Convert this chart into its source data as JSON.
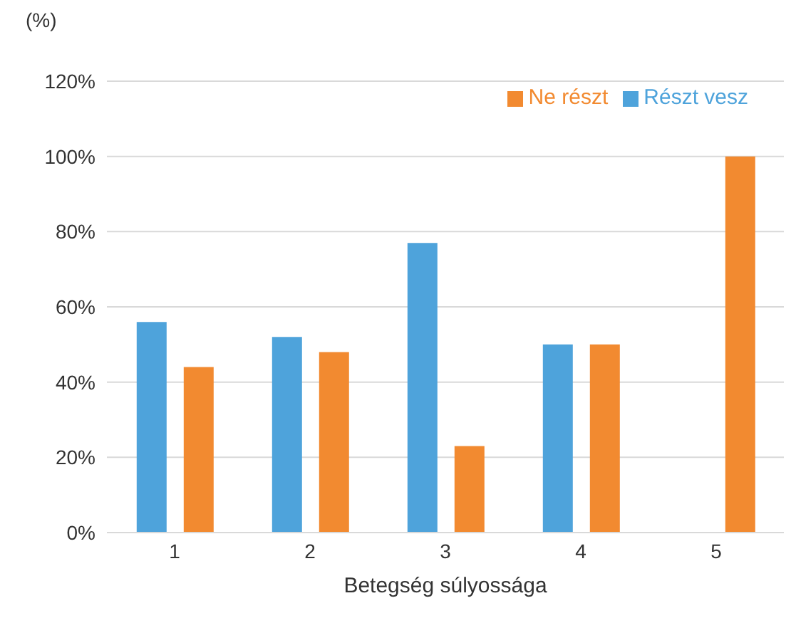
{
  "chart_data": {
    "type": "bar",
    "ylabel": "(%)",
    "xlabel": "Betegség súlyossága",
    "categories": [
      "1",
      "2",
      "3",
      "4",
      "5"
    ],
    "series": [
      {
        "name": "Részt vesz",
        "color": "#4ea3db",
        "values": [
          56,
          52,
          77,
          50,
          null
        ]
      },
      {
        "name": "Ne részt",
        "color": "#f28a30",
        "values": [
          44,
          48,
          23,
          50,
          100
        ]
      }
    ],
    "ylim": [
      0,
      120
    ],
    "yticks": [
      {
        "value": 0,
        "label": "0%"
      },
      {
        "value": 20,
        "label": "20%"
      },
      {
        "value": 40,
        "label": "40%"
      },
      {
        "value": 60,
        "label": "60%"
      },
      {
        "value": 80,
        "label": "80%"
      },
      {
        "value": 100,
        "label": "100%"
      },
      {
        "value": 120,
        "label": "120%"
      }
    ],
    "grid": "y",
    "legend": "top right"
  }
}
